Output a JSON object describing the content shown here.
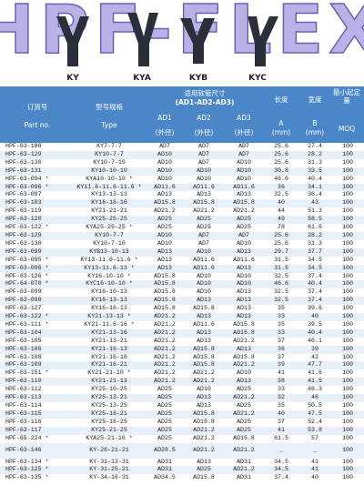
{
  "header": {
    "title": "HPF-FLEX",
    "models": [
      "KY",
      "KYA",
      "KYB",
      "KYC"
    ]
  },
  "table": {
    "columns": {
      "part_cn": "订货号",
      "part_en": "Part no.",
      "type_cn": "型号规格",
      "type_en": "Type",
      "size_cn": "适用软管尺寸",
      "size_en": "(AD1-AD2-AD3)",
      "ad1": "AD1",
      "ad2": "AD2",
      "ad3": "AD3",
      "od1": "(外径)",
      "od2": "(外径)",
      "od3": "(外径)",
      "len_cn": "长度",
      "len_a": "A",
      "len_unit": "(mm)",
      "wid_cn": "宽度",
      "wid_b": "B",
      "wid_unit": "(mm)",
      "moq_cn": "最小起定量",
      "moq_en": "MOQ"
    },
    "rows": [
      [
        "HPF-63-188",
        "KY7-7-7",
        "AD7",
        "AD7",
        "AD7",
        "25.6",
        "27.4",
        "100"
      ],
      [
        "HPF-63-129",
        "KY10-7-7",
        "AD10",
        "AD7",
        "AD7",
        "25.6",
        "28.2",
        "100"
      ],
      [
        "HPF-63-130",
        "KY10-7-10",
        "AD10",
        "AD7",
        "AD10",
        "25.6",
        "31.3",
        "100"
      ],
      [
        "HPF-63-131",
        "KY10-10-10",
        "AD10",
        "AD10",
        "AD10",
        "30.8",
        "33.5",
        "100"
      ],
      [
        "HPF-63-094 *",
        "KYA10-10-10 *",
        "AD10",
        "AD10",
        "AD10",
        "46.6",
        "40.4",
        "100"
      ],
      [
        "HPF-63-096 *",
        "KY11.6-11.6-11.6 *",
        "AD11.6",
        "AD11.6",
        "AD11.6",
        "36",
        "34.1",
        "100"
      ],
      [
        "HPF-63-097",
        "KY13-13-13",
        "AD13",
        "AD13",
        "AD13",
        "32.5",
        "36.4",
        "100"
      ],
      [
        "HPF-63-103",
        "KY16-16-16",
        "AD15.8",
        "AD15.8",
        "AD15.8",
        "40",
        "43",
        "100"
      ],
      [
        "HPF-63-119",
        "KY21-21-21",
        "AD21.2",
        "AD21.2",
        "AD21.2",
        "44",
        "51.3",
        "100"
      ],
      [
        "HPF-63-120",
        "KY25-25-25",
        "AD25",
        "AD25",
        "AD25",
        "49",
        "58.5",
        "100"
      ],
      [
        "HPF-63-122 *",
        "KYA25-25-25 *",
        "AD25",
        "AD25",
        "AD25",
        "78",
        "61.6",
        "100"
      ],
      [
        "HPF-63-129",
        "KY10-7-7",
        "AD10",
        "AD7",
        "AD7",
        "25.6",
        "28.2",
        "100"
      ],
      [
        "HPF-63-130",
        "KY10-7-10",
        "AD10",
        "AD7",
        "AD10",
        "25.6",
        "31.3",
        "100"
      ],
      [
        "HPF-63-099",
        "KYB13-10-13",
        "AD13",
        "AD10",
        "AD13",
        "29.7",
        "37.7",
        "100"
      ],
      [
        "HPF-63-095 *",
        "KY13-11.6-11.6 *",
        "AD13",
        "AD11.6",
        "AD11.6",
        "31.5",
        "34.5",
        "100"
      ],
      [
        "HPF-63-096 *",
        "KY13-11.6-13 *",
        "AD13",
        "AD11.6",
        "AD13",
        "31.5",
        "34.5",
        "100"
      ],
      [
        "HPF-63-126 *",
        "KY16-10-10 *",
        "AD15.8",
        "AD10",
        "AD10",
        "32.5",
        "37.4",
        "100"
      ],
      [
        "HPF-64-070 *",
        "KYC16-10-10 *",
        "AD15.8",
        "AD10",
        "AD10",
        "46.6",
        "40.4",
        "100"
      ],
      [
        "HPF-63-099",
        "KY16-10-13",
        "AD15.8",
        "AD10",
        "AD13",
        "32.5",
        "37.4",
        "100"
      ],
      [
        "HPF-63-098",
        "KY16-13-13",
        "AD15.8",
        "AD13",
        "AD13",
        "32.5",
        "37.4",
        "100"
      ],
      [
        "HPF-63-127",
        "KY16-16-13",
        "AD15.8",
        "AD15.8",
        "AD13",
        "35",
        "39.6",
        "100"
      ],
      [
        "HPF-63-122 *",
        "KY21-13-13 *",
        "AD21.2",
        "AD13",
        "AD13",
        "33",
        "40",
        "100"
      ],
      [
        "HPF-63-111 *",
        "KY21-11.6-16 *",
        "AD21.2",
        "AD11.6",
        "AD15.8",
        "35",
        "39.5",
        "100"
      ],
      [
        "HPF-63-104",
        "KY21-13-16",
        "AD21.2",
        "AD13",
        "AD15.8",
        "33",
        "40.4",
        "100"
      ],
      [
        "HPF-63-105",
        "KY21-13-21",
        "AD21.2",
        "AD13",
        "AD21.2",
        "37",
        "46.1",
        "100"
      ],
      [
        "HPF-63-106",
        "KY21-16-13",
        "AD21.2",
        "AD15.8",
        "AD13",
        "36",
        "39",
        "100"
      ],
      [
        "HPF-63-108",
        "KY21-16-16",
        "AD21.2",
        "AD15.8",
        "AD15.8",
        "37",
        "42",
        "100"
      ],
      [
        "HPF-63-109",
        "KY21-16-21",
        "AD21.2",
        "AD15.8",
        "AD21.2",
        "39",
        "47.7",
        "100"
      ],
      [
        "HPF-63-151 *",
        "KY21-21-10 *",
        "AD21.2",
        "AD21.2",
        "AD10",
        "41",
        "41.6",
        "100"
      ],
      [
        "HPF-63-110",
        "KY21-21-13",
        "AD21.2",
        "AD21.2",
        "AD13",
        "38",
        "41.5",
        "100"
      ],
      [
        "HPF-63-112",
        "KY25-10-25",
        "AD25",
        "AD10",
        "AD25",
        "33",
        "48.3",
        "100"
      ],
      [
        "HPF-63-113",
        "KY25-13-21",
        "AD25",
        "AD13",
        "AD21.2",
        "32",
        "46",
        "100"
      ],
      [
        "HPF-63-114",
        "KY25-13-25",
        "AD25",
        "AD13",
        "AD25",
        "35",
        "50.5",
        "100"
      ],
      [
        "HPF-63-115",
        "KY25-16-21",
        "AD25",
        "AD15.8",
        "AD21.2",
        "40",
        "47.5",
        "100"
      ],
      [
        "HPF-63-116",
        "KY25-16-25",
        "AD25",
        "AD15.8",
        "AD25",
        "37",
        "52.4",
        "100"
      ],
      [
        "HPF-63-117",
        "KY25-21-25",
        "AD25",
        "AD21.2",
        "AD25",
        "41",
        "53.8",
        "100"
      ],
      [
        "HPF-65-224 *",
        "KYA25-21-16 *",
        "AD25",
        "AD21.2",
        "AD15.8",
        "61.5",
        "57",
        "100"
      ],
      [
        "HPF-63-146",
        "KY-28-21-21",
        "AD28.5",
        "AD21.2",
        "AD21.2",
        "_",
        "_",
        "100"
      ],
      [
        "HPF-63-134 *",
        "KY-31-13-31",
        "AD31",
        "AD13",
        "AD31",
        "34.5",
        "41",
        "100"
      ],
      [
        "HPF-63-125 *",
        "KY-31-25-21",
        "AD31",
        "AD25",
        "AD21.2",
        "34.5",
        "41",
        "100"
      ],
      [
        "HPF-63-135 *",
        "KY-34-16-31",
        "AD34.5",
        "AD15.8",
        "AD31",
        "37.4",
        "40",
        "100"
      ]
    ]
  }
}
